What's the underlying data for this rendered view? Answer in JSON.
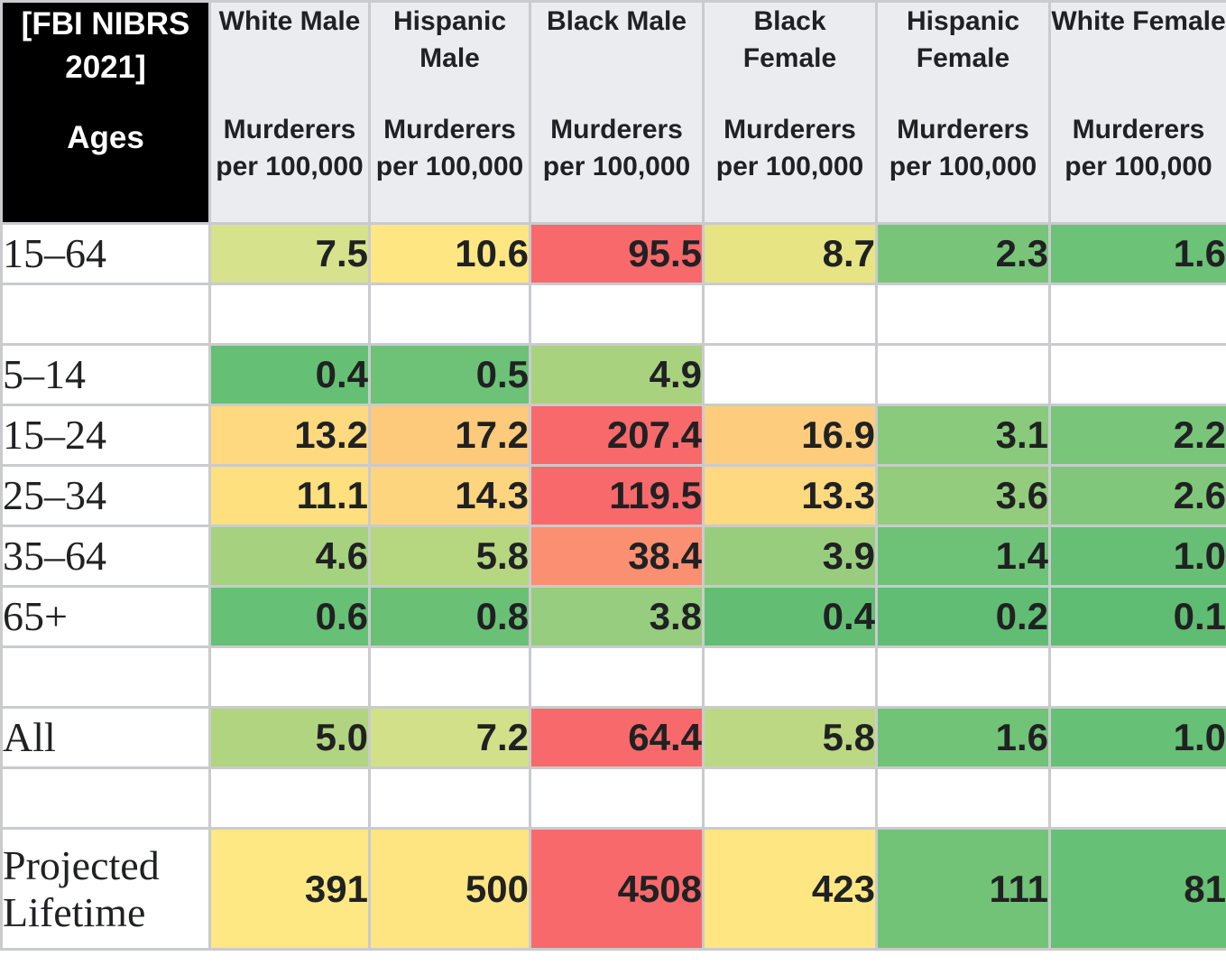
{
  "header": {
    "source": "[FBI NIBRS 2021]",
    "ages_label": "Ages",
    "columns": [
      {
        "group": "White Male",
        "metric": "Murderers per 100,000"
      },
      {
        "group": "Hispanic Male",
        "metric": "Murderers per 100,000"
      },
      {
        "group": "Black Male",
        "metric": "Murderers per 100,000"
      },
      {
        "group": "Black Female",
        "metric": "Murderers per 100,000"
      },
      {
        "group": "Hispanic Female",
        "metric": "Murderers per 100,000"
      },
      {
        "group": "White Female",
        "metric": "Murderers per 100,000"
      }
    ]
  },
  "rows": [
    {
      "label": "15–64",
      "cells": [
        {
          "value": "7.5",
          "color": "#d6e28c"
        },
        {
          "value": "10.6",
          "color": "#fee782"
        },
        {
          "value": "95.5",
          "color": "#f8696b"
        },
        {
          "value": "8.7",
          "color": "#e7e483"
        },
        {
          "value": "2.3",
          "color": "#78c57a"
        },
        {
          "value": "1.6",
          "color": "#6cc277"
        }
      ]
    },
    {
      "spacer": true
    },
    {
      "label": "5–14",
      "cells": [
        {
          "value": "0.4",
          "color": "#65bf74"
        },
        {
          "value": "0.5",
          "color": "#6dc277"
        },
        {
          "value": "4.9",
          "color": "#a9d27f"
        },
        {
          "value": ""
        },
        {
          "value": ""
        },
        {
          "value": ""
        }
      ]
    },
    {
      "label": "15–24",
      "cells": [
        {
          "value": "13.2",
          "color": "#fed97f"
        },
        {
          "value": "17.2",
          "color": "#fdca7c"
        },
        {
          "value": "207.4",
          "color": "#f8696b"
        },
        {
          "value": "16.9",
          "color": "#fdcd7d"
        },
        {
          "value": "3.1",
          "color": "#89ca7c"
        },
        {
          "value": "2.2",
          "color": "#79c67a"
        }
      ]
    },
    {
      "label": "25–34",
      "cells": [
        {
          "value": "11.1",
          "color": "#fee07f"
        },
        {
          "value": "14.3",
          "color": "#fed57f"
        },
        {
          "value": "119.5",
          "color": "#f8696b"
        },
        {
          "value": "13.3",
          "color": "#fed97f"
        },
        {
          "value": "3.6",
          "color": "#93cc7d"
        },
        {
          "value": "2.6",
          "color": "#80c77b"
        }
      ]
    },
    {
      "label": "35–64",
      "cells": [
        {
          "value": "4.6",
          "color": "#a6d17f"
        },
        {
          "value": "5.8",
          "color": "#b7d680"
        },
        {
          "value": "38.4",
          "color": "#fa8f72"
        },
        {
          "value": "3.9",
          "color": "#99cd7e"
        },
        {
          "value": "1.4",
          "color": "#6ec277"
        },
        {
          "value": "1.0",
          "color": "#66bf75"
        }
      ]
    },
    {
      "label": "65+",
      "cells": [
        {
          "value": "0.6",
          "color": "#66c075"
        },
        {
          "value": "0.8",
          "color": "#6ac176"
        },
        {
          "value": "3.8",
          "color": "#97cd7e"
        },
        {
          "value": "0.4",
          "color": "#63be74"
        },
        {
          "value": "0.2",
          "color": "#60bd73"
        },
        {
          "value": "0.1",
          "color": "#5fbc73"
        }
      ]
    },
    {
      "spacer": true
    },
    {
      "label": "All",
      "cells": [
        {
          "value": "5.0",
          "color": "#b1d480"
        },
        {
          "value": "7.2",
          "color": "#d2e08a"
        },
        {
          "value": "64.4",
          "color": "#f8696b"
        },
        {
          "value": "5.8",
          "color": "#bcd882"
        },
        {
          "value": "1.6",
          "color": "#70c377"
        },
        {
          "value": "1.0",
          "color": "#66c075"
        }
      ]
    },
    {
      "spacer": true
    },
    {
      "label_lines": [
        "Projected",
        "Lifetime"
      ],
      "cells": [
        {
          "value": "391",
          "color": "#fde884"
        },
        {
          "value": "500",
          "color": "#fee582"
        },
        {
          "value": "4508",
          "color": "#f8696b"
        },
        {
          "value": "423",
          "color": "#fee783"
        },
        {
          "value": "111",
          "color": "#72c377"
        },
        {
          "value": "81",
          "color": "#66c075"
        }
      ]
    }
  ]
}
